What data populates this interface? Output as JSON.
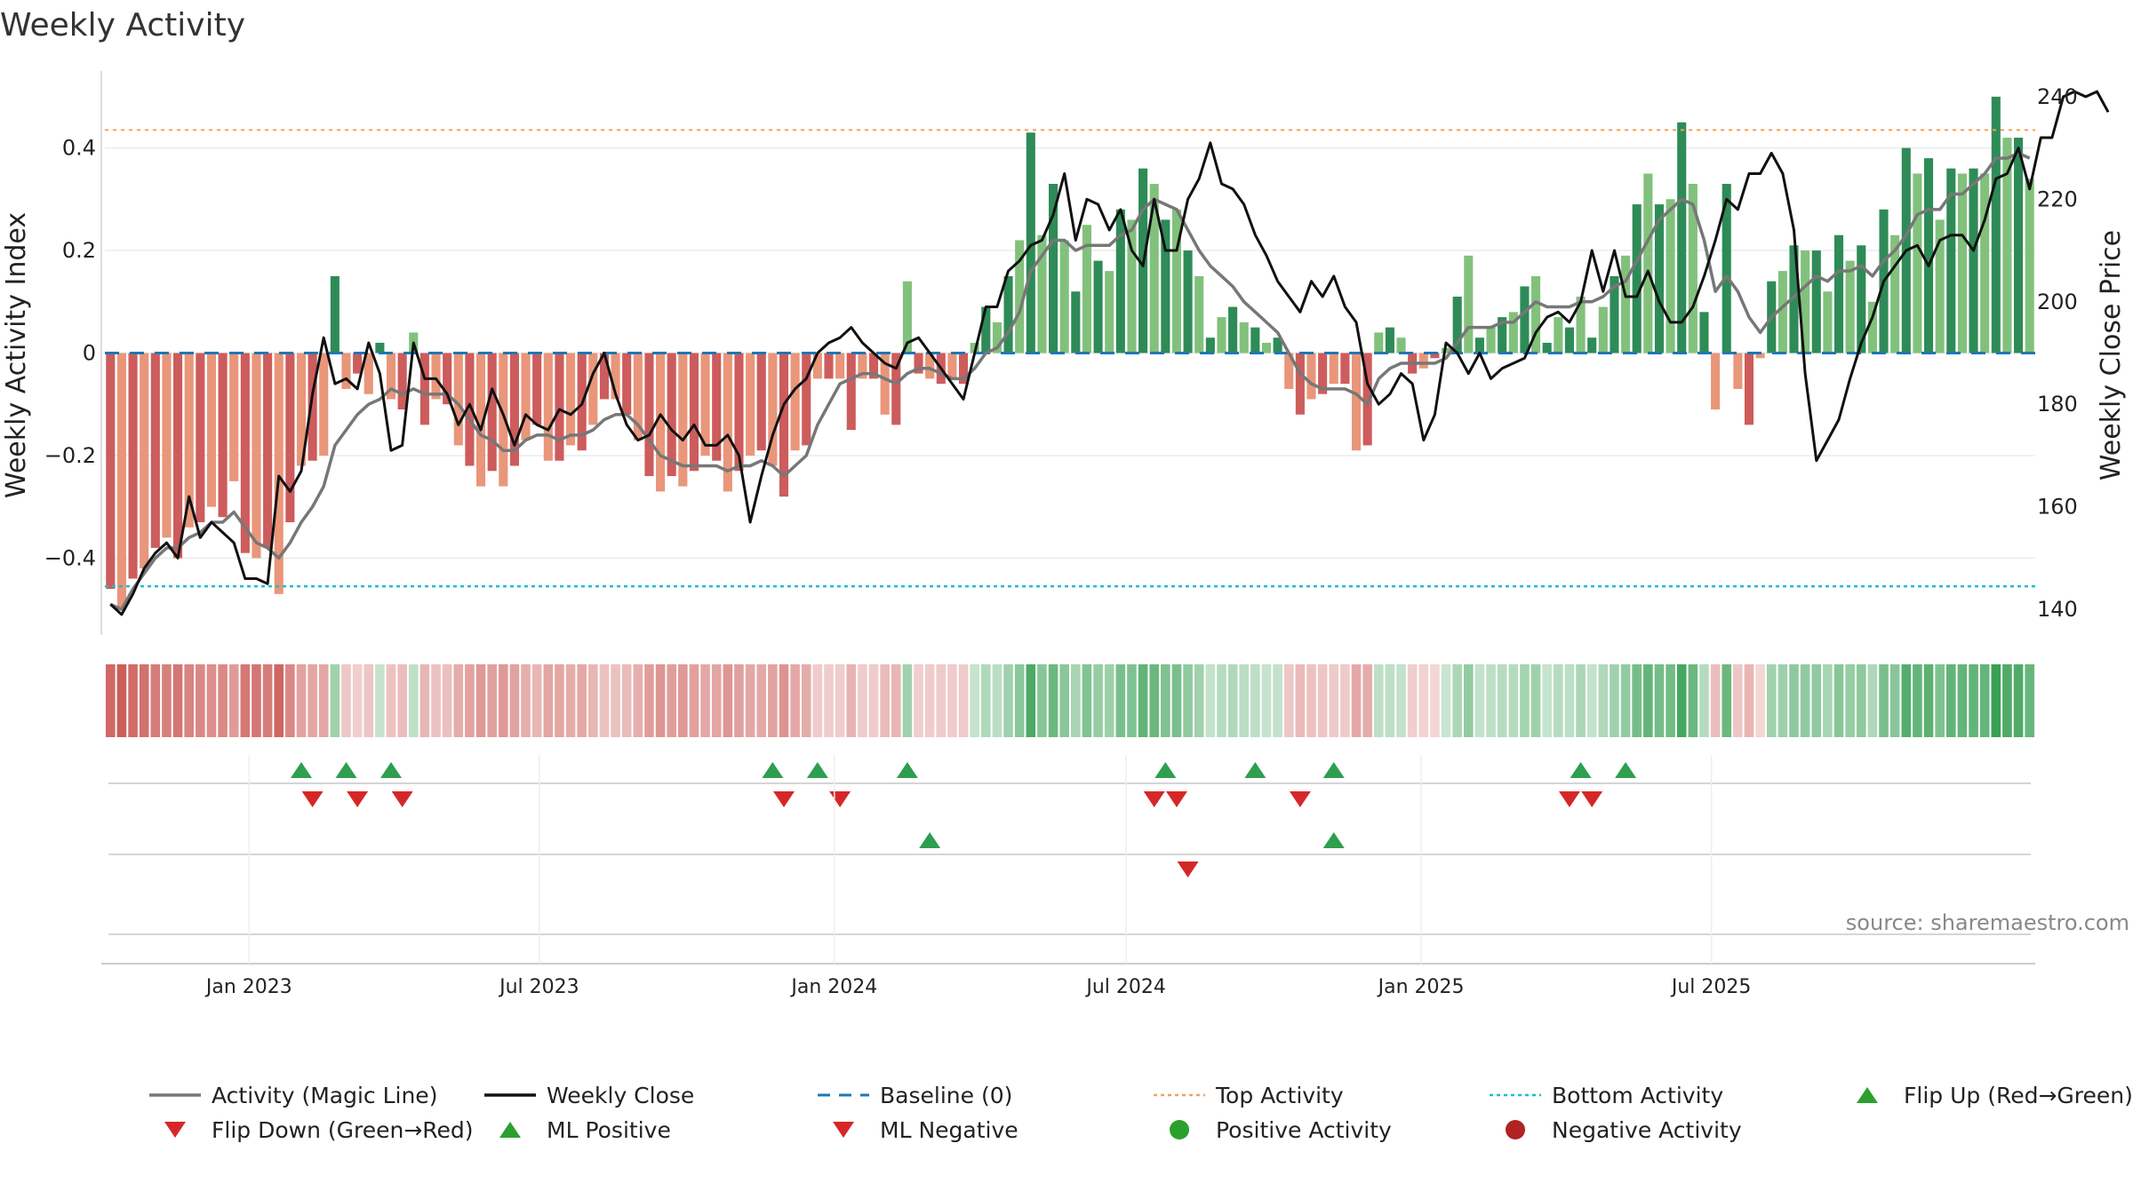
{
  "chart_data": {
    "type": "bar",
    "title": "Weekly Activity",
    "ylabel_left": "Weekly Activity Index",
    "ylabel_right": "Weekly Close Price",
    "source": "source: sharemaestro.com",
    "x_start": "2022-10-03",
    "x_step_days": 7,
    "ylim_left": [
      -0.55,
      0.55
    ],
    "ylim_right": [
      135,
      245
    ],
    "yticks_left": [
      {
        "value": 0.4,
        "label": "0.4"
      },
      {
        "value": 0.2,
        "label": "0.2"
      },
      {
        "value": 0,
        "label": "0"
      },
      {
        "value": -0.2,
        "label": "−0.2"
      },
      {
        "value": -0.4,
        "label": "−0.4"
      }
    ],
    "yticks_right": [
      {
        "value": 240,
        "label": "240"
      },
      {
        "value": 220,
        "label": "220"
      },
      {
        "value": 200,
        "label": "200"
      },
      {
        "value": 180,
        "label": "180"
      },
      {
        "value": 160,
        "label": "160"
      },
      {
        "value": 140,
        "label": "140"
      }
    ],
    "xticks": [
      {
        "date": "2023-01-01",
        "label": "Jan 2023"
      },
      {
        "date": "2023-07-01",
        "label": "Jul 2023"
      },
      {
        "date": "2024-01-01",
        "label": "Jan 2024"
      },
      {
        "date": "2024-07-01",
        "label": "Jul 2024"
      },
      {
        "date": "2025-01-01",
        "label": "Jan 2025"
      },
      {
        "date": "2025-07-01",
        "label": "Jul 2025"
      }
    ],
    "top_activity": 0.435,
    "bottom_activity": -0.455,
    "activity": [
      -0.46,
      -0.5,
      -0.44,
      -0.42,
      -0.38,
      -0.36,
      -0.4,
      -0.34,
      -0.33,
      -0.3,
      -0.32,
      -0.25,
      -0.39,
      -0.4,
      -0.38,
      -0.47,
      -0.33,
      -0.22,
      -0.21,
      -0.2,
      0.15,
      -0.07,
      -0.04,
      -0.08,
      0.02,
      -0.09,
      -0.11,
      0.04,
      -0.14,
      -0.09,
      -0.1,
      -0.18,
      -0.22,
      -0.26,
      -0.23,
      -0.26,
      -0.22,
      -0.17,
      -0.14,
      -0.21,
      -0.21,
      -0.18,
      -0.19,
      -0.14,
      -0.09,
      -0.09,
      -0.12,
      -0.17,
      -0.24,
      -0.27,
      -0.24,
      -0.26,
      -0.23,
      -0.2,
      -0.21,
      -0.27,
      -0.23,
      -0.2,
      -0.19,
      -0.22,
      -0.28,
      -0.19,
      -0.18,
      -0.05,
      -0.05,
      -0.05,
      -0.15,
      -0.05,
      -0.05,
      -0.12,
      -0.14,
      0.14,
      -0.04,
      -0.05,
      -0.06,
      -0.05,
      -0.06,
      0.02,
      0.09,
      0.06,
      0.15,
      0.22,
      0.43,
      0.23,
      0.33,
      0.22,
      0.12,
      0.25,
      0.18,
      0.16,
      0.28,
      0.26,
      0.36,
      0.33,
      0.26,
      0.28,
      0.2,
      0.15,
      0.03,
      0.07,
      0.09,
      0.06,
      0.05,
      0.02,
      0.03,
      -0.07,
      -0.12,
      -0.09,
      -0.08,
      -0.06,
      -0.06,
      -0.19,
      -0.18,
      0.04,
      0.05,
      0.03,
      -0.04,
      -0.03,
      -0.01,
      0.01,
      0.11,
      0.19,
      0.03,
      0.05,
      0.07,
      0.08,
      0.13,
      0.15,
      0.02,
      0.07,
      0.05,
      0.11,
      0.03,
      0.09,
      0.15,
      0.19,
      0.29,
      0.35,
      0.29,
      0.3,
      0.45,
      0.33,
      0.08,
      -0.11,
      0.33,
      -0.07,
      -0.14,
      -0.01,
      0.14,
      0.16,
      0.21,
      0.2,
      0.2,
      0.12,
      0.23,
      0.18,
      0.21,
      0.1,
      0.28,
      0.23,
      0.4,
      0.35,
      0.38,
      0.26,
      0.36,
      0.35,
      0.36,
      0.35,
      0.5,
      0.42,
      0.42,
      0.34
    ],
    "magic_line": [
      -0.49,
      -0.5,
      -0.46,
      -0.43,
      -0.4,
      -0.38,
      -0.38,
      -0.36,
      -0.35,
      -0.33,
      -0.33,
      -0.31,
      -0.34,
      -0.37,
      -0.38,
      -0.4,
      -0.37,
      -0.33,
      -0.3,
      -0.26,
      -0.18,
      -0.15,
      -0.12,
      -0.1,
      -0.09,
      -0.07,
      -0.08,
      -0.07,
      -0.08,
      -0.08,
      -0.08,
      -0.1,
      -0.13,
      -0.16,
      -0.17,
      -0.19,
      -0.19,
      -0.17,
      -0.16,
      -0.16,
      -0.17,
      -0.16,
      -0.16,
      -0.15,
      -0.13,
      -0.12,
      -0.12,
      -0.14,
      -0.17,
      -0.2,
      -0.21,
      -0.22,
      -0.22,
      -0.22,
      -0.22,
      -0.23,
      -0.22,
      -0.22,
      -0.21,
      -0.22,
      -0.24,
      -0.22,
      -0.2,
      -0.14,
      -0.1,
      -0.06,
      -0.05,
      -0.04,
      -0.04,
      -0.05,
      -0.06,
      -0.04,
      -0.03,
      -0.03,
      -0.04,
      -0.05,
      -0.05,
      -0.03,
      0.0,
      0.01,
      0.04,
      0.08,
      0.16,
      0.19,
      0.22,
      0.22,
      0.2,
      0.21,
      0.21,
      0.21,
      0.23,
      0.24,
      0.28,
      0.3,
      0.29,
      0.28,
      0.24,
      0.2,
      0.17,
      0.15,
      0.13,
      0.1,
      0.08,
      0.06,
      0.04,
      0.0,
      -0.04,
      -0.06,
      -0.07,
      -0.07,
      -0.07,
      -0.08,
      -0.1,
      -0.05,
      -0.03,
      -0.02,
      -0.02,
      -0.02,
      -0.02,
      -0.01,
      0.02,
      0.05,
      0.05,
      0.05,
      0.06,
      0.06,
      0.08,
      0.1,
      0.09,
      0.09,
      0.09,
      0.1,
      0.1,
      0.11,
      0.13,
      0.14,
      0.18,
      0.22,
      0.26,
      0.28,
      0.3,
      0.29,
      0.22,
      0.12,
      0.15,
      0.12,
      0.07,
      0.04,
      0.07,
      0.09,
      0.11,
      0.13,
      0.15,
      0.14,
      0.16,
      0.16,
      0.17,
      0.15,
      0.18,
      0.2,
      0.23,
      0.27,
      0.28,
      0.28,
      0.31,
      0.31,
      0.33,
      0.35,
      0.38,
      0.38,
      0.39,
      0.38
    ],
    "weekly_close": [
      141,
      139,
      143,
      148,
      151,
      153,
      150,
      162,
      154,
      157,
      155,
      153,
      146,
      146,
      145,
      166,
      163,
      167,
      182,
      193,
      184,
      185,
      183,
      192,
      186,
      171,
      172,
      192,
      185,
      185,
      182,
      176,
      180,
      175,
      183,
      178,
      172,
      178,
      176,
      175,
      179,
      178,
      180,
      186,
      190,
      182,
      176,
      173,
      174,
      178,
      175,
      173,
      176,
      172,
      172,
      174,
      170,
      157,
      166,
      174,
      180,
      183,
      185,
      190,
      192,
      193,
      195,
      192,
      190,
      188,
      187,
      192,
      193,
      190,
      187,
      184,
      181,
      190,
      199,
      199,
      206,
      208,
      211,
      212,
      217,
      225,
      212,
      220,
      219,
      214,
      218,
      210,
      207,
      220,
      210,
      210,
      220,
      224,
      231,
      223,
      222,
      219,
      213,
      209,
      204,
      201,
      198,
      204,
      201,
      205,
      199,
      196,
      184,
      180,
      182,
      186,
      184,
      173,
      178,
      192,
      190,
      186,
      190,
      185,
      187,
      188,
      189,
      194,
      197,
      198,
      196,
      200,
      210,
      202,
      210,
      201,
      201,
      206,
      200,
      196,
      196,
      199,
      205,
      212,
      220,
      218,
      225,
      225,
      229,
      225,
      214,
      186,
      169,
      173,
      177,
      185,
      192,
      197,
      204,
      207,
      210,
      211,
      207,
      212,
      213,
      213,
      210,
      216,
      224,
      225,
      230,
      222,
      232,
      232,
      240,
      241,
      240,
      241,
      237
    ],
    "flip_up": [
      "2023-01-30",
      "2023-02-27",
      "2023-03-27",
      "2023-11-20",
      "2023-12-18",
      "2024-02-12",
      "2024-07-22",
      "2024-09-16",
      "2024-11-04",
      "2025-04-07",
      "2025-05-05"
    ],
    "flip_down": [
      "2023-02-06",
      "2023-03-06",
      "2023-04-03",
      "2023-11-27",
      "2024-01-01",
      "2024-07-15",
      "2024-07-29",
      "2024-10-14",
      "2025-03-31",
      "2025-04-14"
    ],
    "ml_positive": [
      "2024-02-26",
      "2024-11-04"
    ],
    "ml_negative": [
      "2024-08-05"
    ],
    "legend": [
      {
        "label": "Activity (Magic Line)",
        "type": "line",
        "color": "#777777"
      },
      {
        "label": "Weekly Close",
        "type": "line",
        "color": "#111111"
      },
      {
        "label": "Baseline (0)",
        "type": "dash",
        "color": "#1f77b4"
      },
      {
        "label": "Top Activity",
        "type": "dot",
        "color": "#f5a05a"
      },
      {
        "label": "Bottom Activity",
        "type": "dot",
        "color": "#17becf"
      },
      {
        "label": "Flip Up (Red→Green)",
        "type": "tri-up",
        "color": "#2ca02c"
      },
      {
        "label": "Flip Down (Green→Red)",
        "type": "tri-down",
        "color": "#d62728"
      },
      {
        "label": "ML Positive",
        "type": "tri-up",
        "color": "#2ca02c"
      },
      {
        "label": "ML Negative",
        "type": "tri-down",
        "color": "#d62728"
      },
      {
        "label": "Positive Activity",
        "type": "circle",
        "color": "#2ca02c"
      },
      {
        "label": "Negative Activity",
        "type": "circle",
        "color": "#b22222"
      }
    ]
  }
}
